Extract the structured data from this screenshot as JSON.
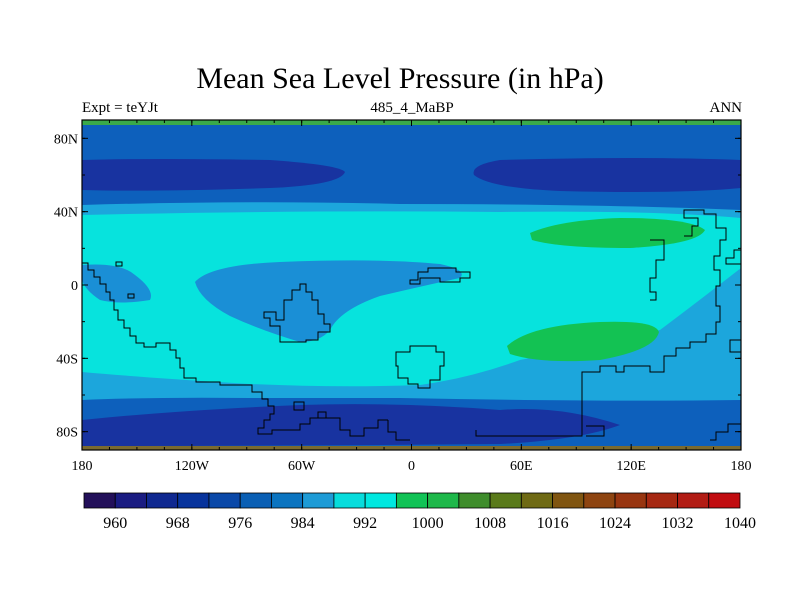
{
  "title": "Mean Sea Level Pressure (in hPa)",
  "subtitle_left": "Expt = teYJt",
  "subtitle_center": "485_4_MaBP",
  "subtitle_right": "ANN",
  "x_ticks": [
    "180",
    "120W",
    "60W",
    "0",
    "60E",
    "120E",
    "180"
  ],
  "y_ticks": [
    "80N",
    "40N",
    "0",
    "40S",
    "80S"
  ],
  "colorbar": {
    "colors": [
      "#23105a",
      "#1a1c82",
      "#0f2890",
      "#07339c",
      "#0a48a8",
      "#0a5fb4",
      "#0b74c0",
      "#1d9bd6",
      "#07dcdc",
      "#00e8e0",
      "#11c356",
      "#1eb84a",
      "#3f8d2c",
      "#5a7a1a",
      "#6f6a14",
      "#805510",
      "#8e4410",
      "#983510",
      "#a62812",
      "#b21c14",
      "#c10c10"
    ],
    "labels": [
      "960",
      "968",
      "976",
      "984",
      "992",
      "1000",
      "1008",
      "1016",
      "1024",
      "1032",
      "1040"
    ]
  },
  "legend_colors": {
    "deep_low": "#1833a0",
    "low": "#0d60bc",
    "mid": "#1a8fd6",
    "mid2": "#1ca6dc",
    "high": "#07e3dd",
    "peak": "#13c253",
    "polar_band": "#3aaa4a"
  }
}
